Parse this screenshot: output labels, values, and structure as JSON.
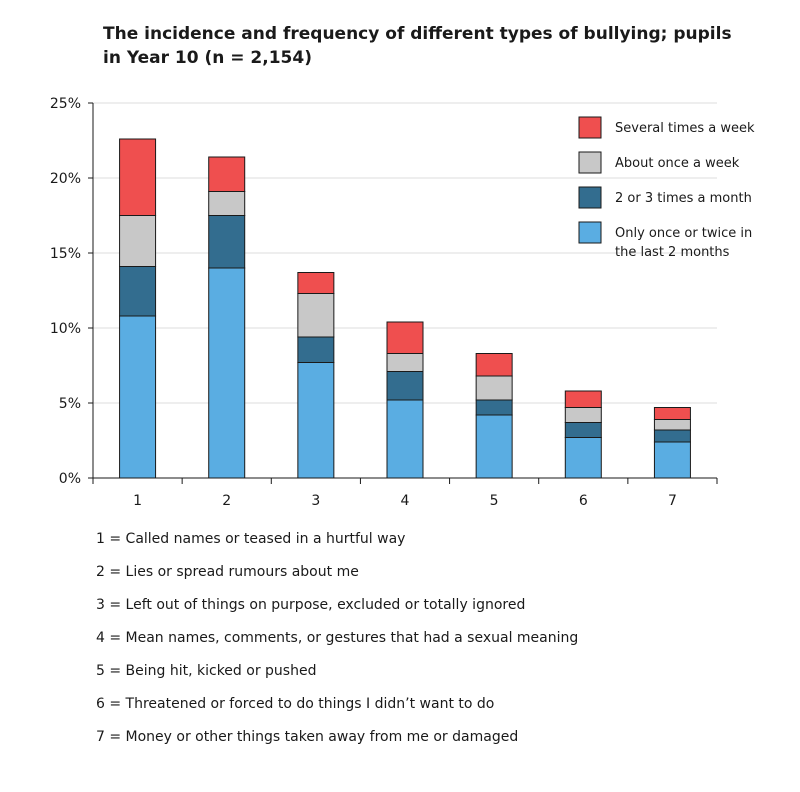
{
  "chart_data": {
    "type": "bar",
    "stacked": true,
    "title": "The incidence and frequency of different types of bullying; pupils in Year 10  (n = 2,154)",
    "xlabel": "",
    "ylabel": "",
    "ylim": [
      0,
      25
    ],
    "yticks": [
      0,
      5,
      10,
      15,
      20,
      25
    ],
    "ytick_labels": [
      "0%",
      "5%",
      "10%",
      "15%",
      "20%",
      "25%"
    ],
    "grid": true,
    "legend_position": "top-right",
    "categories": [
      "1",
      "2",
      "3",
      "4",
      "5",
      "6",
      "7"
    ],
    "series": [
      {
        "name": "Only once or twice in the last 2 months",
        "name_lines": [
          "Only once or twice in",
          "the last 2 months"
        ],
        "color": "#5aade2",
        "values": [
          10.8,
          14.0,
          7.7,
          5.2,
          4.2,
          2.7,
          2.4
        ]
      },
      {
        "name": "2 or 3 times a month",
        "name_lines": [
          "2 or 3 times a month"
        ],
        "color": "#336d8f",
        "values": [
          3.3,
          3.5,
          1.7,
          1.9,
          1.0,
          1.0,
          0.8
        ]
      },
      {
        "name": "About once a week",
        "name_lines": [
          "About once a week"
        ],
        "color": "#c8c8c8",
        "values": [
          3.4,
          1.6,
          2.9,
          1.2,
          1.6,
          1.0,
          0.7
        ]
      },
      {
        "name": "Several times a week",
        "name_lines": [
          "Several times a week"
        ],
        "color": "#ef4f4f",
        "values": [
          5.1,
          2.3,
          1.4,
          2.1,
          1.5,
          1.1,
          0.8
        ]
      }
    ],
    "key": [
      "1 = Called names or teased in a hurtful way",
      "2 = Lies or spread rumours about me",
      "3 = Left out of things on purpose, excluded or totally ignored",
      "4 = Mean names, comments, or gestures that had a sexual meaning",
      "5 = Being hit, kicked or pushed",
      "6 = Threatened or forced to do things I didn’t want to do",
      "7 = Money or other things taken away from me or damaged"
    ]
  }
}
